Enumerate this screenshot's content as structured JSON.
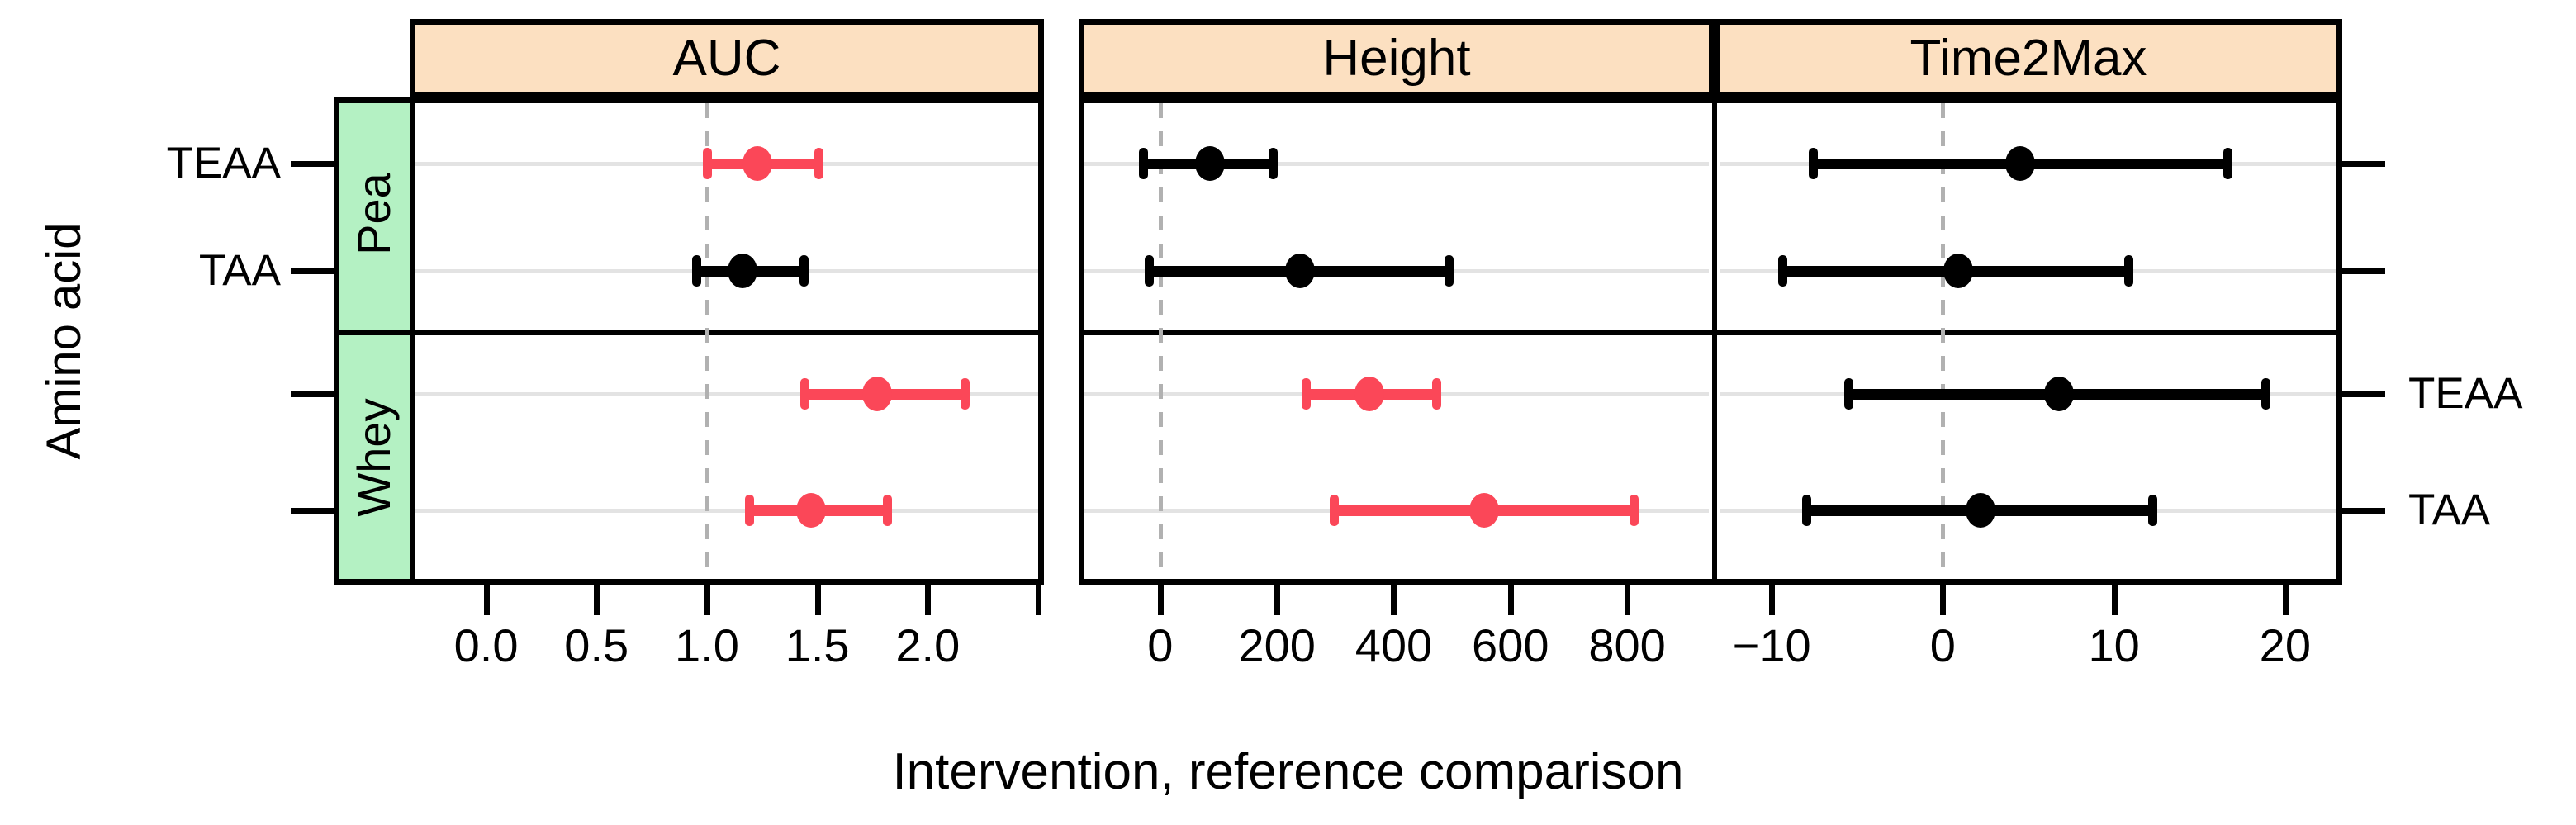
{
  "chart_data": {
    "type": "forest-dotplot",
    "xlabel": "Intervention, reference comparison",
    "ylabel": "Amino acid",
    "legend_position": "none",
    "grid": "horizontal-row-lines",
    "row_groups": [
      {
        "name": "Pea",
        "rows": [
          "TEAA",
          "TAA"
        ],
        "labels_side": "left"
      },
      {
        "name": "Whey",
        "rows": [
          "TEAA",
          "TAA"
        ],
        "labels_side": "right"
      }
    ],
    "panels": [
      {
        "title": "AUC",
        "xlim": [
          -0.32,
          2.5
        ],
        "ticks": [
          0.0,
          0.5,
          1.0,
          1.5,
          2.0,
          2.5
        ],
        "tick_labels": [
          "0.0",
          "0.5",
          "1.0",
          "1.5",
          "2.0",
          ""
        ],
        "refline": 1.0,
        "points": [
          {
            "group": "Pea",
            "row": "TEAA",
            "estimate": 1.23,
            "lower": 1.0,
            "upper": 1.51,
            "highlight": true
          },
          {
            "group": "Pea",
            "row": "TAA",
            "estimate": 1.16,
            "lower": 0.95,
            "upper": 1.44,
            "highlight": false
          },
          {
            "group": "Whey",
            "row": "TEAA",
            "estimate": 1.77,
            "lower": 1.44,
            "upper": 2.17,
            "highlight": true
          },
          {
            "group": "Whey",
            "row": "TAA",
            "estimate": 1.47,
            "lower": 1.19,
            "upper": 1.82,
            "highlight": true
          }
        ]
      },
      {
        "title": "Height",
        "xlim": [
          -130,
          940
        ],
        "ticks": [
          0,
          200,
          400,
          600,
          800
        ],
        "tick_labels": [
          "0",
          "200",
          "400",
          "600",
          "800"
        ],
        "refline": 0,
        "points": [
          {
            "group": "Pea",
            "row": "TEAA",
            "estimate": 85,
            "lower": -29,
            "upper": 194,
            "highlight": false
          },
          {
            "group": "Pea",
            "row": "TAA",
            "estimate": 240,
            "lower": -20,
            "upper": 496,
            "highlight": false
          },
          {
            "group": "Whey",
            "row": "TEAA",
            "estimate": 358,
            "lower": 250,
            "upper": 474,
            "highlight": true
          },
          {
            "group": "Whey",
            "row": "TAA",
            "estimate": 555,
            "lower": 297,
            "upper": 812,
            "highlight": true
          }
        ]
      },
      {
        "title": "Time2Max",
        "xlim": [
          -13,
          23
        ],
        "ticks": [
          -10,
          0,
          10,
          20
        ],
        "tick_labels": [
          "−10",
          "0",
          "10",
          "20"
        ],
        "refline": 0,
        "points": [
          {
            "group": "Pea",
            "row": "TEAA",
            "estimate": 4.5,
            "lower": -7.6,
            "upper": 16.7,
            "highlight": false
          },
          {
            "group": "Pea",
            "row": "TAA",
            "estimate": 0.9,
            "lower": -9.4,
            "upper": 10.9,
            "highlight": false
          },
          {
            "group": "Whey",
            "row": "TEAA",
            "estimate": 6.8,
            "lower": -5.5,
            "upper": 18.9,
            "highlight": false
          },
          {
            "group": "Whey",
            "row": "TAA",
            "estimate": 2.2,
            "lower": -8.0,
            "upper": 12.3,
            "highlight": false
          }
        ]
      }
    ],
    "colors": {
      "highlight": "#FB4758",
      "default": "#000000",
      "strip_header_fill": "#FCE0C1",
      "group_strip_fill": "#B4F1C3",
      "gridline": "#E3E3E3",
      "refline": "#B1B1B1",
      "border": "#000000",
      "background": "#FFFFFF"
    }
  }
}
